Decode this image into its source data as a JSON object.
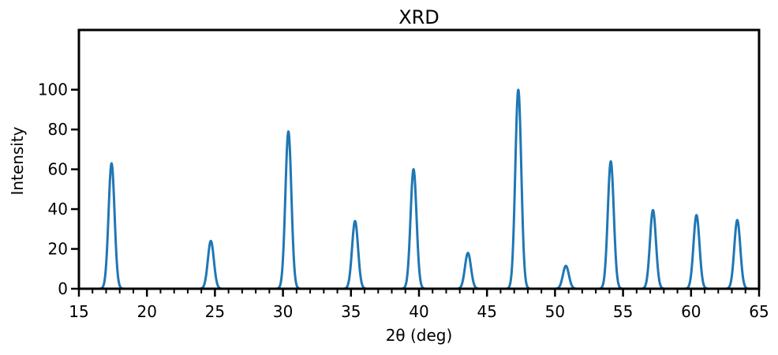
{
  "chart_data": {
    "type": "line",
    "title": "XRD",
    "xlabel": "2θ (deg)",
    "ylabel": "Intensity",
    "xlim": [
      15,
      65
    ],
    "ylim": [
      0,
      130
    ],
    "xticks": [
      15,
      20,
      25,
      30,
      35,
      40,
      45,
      50,
      55,
      60,
      65
    ],
    "yticks": [
      0,
      20,
      40,
      60,
      80,
      100
    ],
    "minor_x_step": 1,
    "grid": false,
    "line_color": "#1f77b4",
    "peak_width_deg": 0.22,
    "peaks": [
      {
        "x": 17.4,
        "y": 63
      },
      {
        "x": 24.7,
        "y": 24
      },
      {
        "x": 30.4,
        "y": 79
      },
      {
        "x": 35.3,
        "y": 34
      },
      {
        "x": 39.6,
        "y": 60
      },
      {
        "x": 43.6,
        "y": 18
      },
      {
        "x": 47.3,
        "y": 100
      },
      {
        "x": 50.8,
        "y": 11.5
      },
      {
        "x": 54.1,
        "y": 64
      },
      {
        "x": 57.2,
        "y": 39.5
      },
      {
        "x": 60.4,
        "y": 37
      },
      {
        "x": 63.4,
        "y": 34.5
      }
    ]
  }
}
